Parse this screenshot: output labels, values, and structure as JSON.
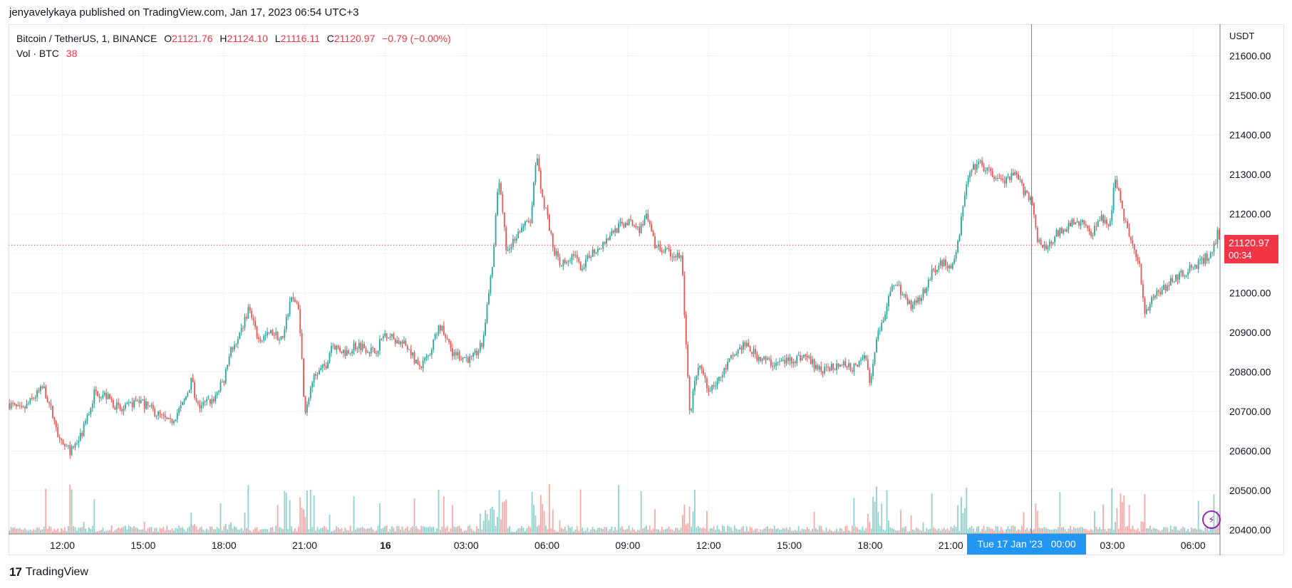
{
  "header": {
    "publish_text": "jenyavelykaya published on TradingView.com, Jan 17, 2023 06:54 UTC+3"
  },
  "legend": {
    "symbol": "Bitcoin / TetherUS, 1, BINANCE",
    "open_label": "O",
    "open": "21121.76",
    "high_label": "H",
    "high": "21124.10",
    "low_label": "L",
    "low": "21116.11",
    "close_label": "C",
    "close": "21120.97",
    "change": "−0.79 (−0.00%)",
    "volume_label": "Vol · BTC",
    "volume": "38"
  },
  "footer": {
    "brand": "TradingView",
    "logo_glyph": "17"
  },
  "price_tag": {
    "price": "21120.97",
    "countdown": "00:34"
  },
  "crosshair_label": "Tue 17 Jan '23   00:00",
  "colors": {
    "up": "#26a69a",
    "down": "#ef5350",
    "accent": "#2196f3",
    "price_line": "#f23645",
    "grid": "#f0f3fa"
  },
  "chart_data": {
    "type": "candlestick",
    "symbol": "Bitcoin / TetherUS",
    "interval": "1",
    "exchange": "BINANCE",
    "y_axis_unit": "USDT",
    "ylim": [
      20390,
      21680
    ],
    "y_ticks": [
      20400,
      20500,
      20600,
      20700,
      20800,
      20900,
      21000,
      21100,
      21200,
      21300,
      21400,
      21500,
      21600
    ],
    "y_tick_labels": [
      "20400.00",
      "20500.00",
      "20600.00",
      "20700.00",
      "20800.00",
      "20900.00",
      "21000.00",
      "21100.00",
      "21200.00",
      "21300.00",
      "21400.00",
      "21500.00",
      "21600.00"
    ],
    "x_ticks": [
      {
        "label": "12:00",
        "h": 12
      },
      {
        "label": "15:00",
        "h": 15
      },
      {
        "label": "18:00",
        "h": 18
      },
      {
        "label": "21:00",
        "h": 21
      },
      {
        "label": "16",
        "h": 24,
        "bold": true
      },
      {
        "label": "03:00",
        "h": 27
      },
      {
        "label": "06:00",
        "h": 30
      },
      {
        "label": "09:00",
        "h": 33
      },
      {
        "label": "12:00",
        "h": 36
      },
      {
        "label": "15:00",
        "h": 39
      },
      {
        "label": "18:00",
        "h": 42
      },
      {
        "label": "21:00",
        "h": 45
      },
      {
        "label": "03:00",
        "h": 51
      },
      {
        "label": "06:00",
        "h": 54
      }
    ],
    "x_range_hours": [
      10.0,
      55.0
    ],
    "crosshair_hour": 48,
    "last_price": 21120.97,
    "price_path": [
      [
        10.0,
        20720
      ],
      [
        10.5,
        20700
      ],
      [
        11.0,
        20740
      ],
      [
        11.3,
        20760
      ],
      [
        11.6,
        20700
      ],
      [
        11.9,
        20620
      ],
      [
        12.3,
        20600
      ],
      [
        12.7,
        20640
      ],
      [
        13.0,
        20700
      ],
      [
        13.2,
        20750
      ],
      [
        13.6,
        20740
      ],
      [
        14.2,
        20700
      ],
      [
        14.8,
        20730
      ],
      [
        15.4,
        20700
      ],
      [
        16.0,
        20670
      ],
      [
        16.5,
        20720
      ],
      [
        16.8,
        20780
      ],
      [
        17.0,
        20710
      ],
      [
        17.6,
        20730
      ],
      [
        18.0,
        20780
      ],
      [
        18.2,
        20850
      ],
      [
        18.5,
        20870
      ],
      [
        18.9,
        20960
      ],
      [
        19.3,
        20880
      ],
      [
        19.8,
        20900
      ],
      [
        20.2,
        20880
      ],
      [
        20.5,
        21000
      ],
      [
        20.8,
        20950
      ],
      [
        21.0,
        20700
      ],
      [
        21.3,
        20780
      ],
      [
        21.8,
        20820
      ],
      [
        22.0,
        20870
      ],
      [
        22.5,
        20850
      ],
      [
        23.0,
        20870
      ],
      [
        23.6,
        20850
      ],
      [
        24.0,
        20900
      ],
      [
        24.4,
        20880
      ],
      [
        24.9,
        20860
      ],
      [
        25.2,
        20810
      ],
      [
        25.6,
        20840
      ],
      [
        26.0,
        20920
      ],
      [
        26.5,
        20850
      ],
      [
        26.8,
        20840
      ],
      [
        27.2,
        20830
      ],
      [
        27.6,
        20870
      ],
      [
        27.8,
        20980
      ],
      [
        28.0,
        21080
      ],
      [
        28.2,
        21300
      ],
      [
        28.5,
        21100
      ],
      [
        28.8,
        21140
      ],
      [
        29.1,
        21170
      ],
      [
        29.4,
        21180
      ],
      [
        29.6,
        21350
      ],
      [
        29.8,
        21250
      ],
      [
        30.0,
        21200
      ],
      [
        30.2,
        21120
      ],
      [
        30.5,
        21070
      ],
      [
        31.0,
        21100
      ],
      [
        31.3,
        21050
      ],
      [
        31.6,
        21100
      ],
      [
        32.0,
        21120
      ],
      [
        32.5,
        21160
      ],
      [
        33.0,
        21180
      ],
      [
        33.4,
        21160
      ],
      [
        33.7,
        21190
      ],
      [
        34.0,
        21120
      ],
      [
        34.5,
        21100
      ],
      [
        35.0,
        21090
      ],
      [
        35.3,
        20690
      ],
      [
        35.6,
        20820
      ],
      [
        36.0,
        20760
      ],
      [
        36.4,
        20780
      ],
      [
        36.8,
        20830
      ],
      [
        37.3,
        20870
      ],
      [
        37.8,
        20840
      ],
      [
        38.4,
        20820
      ],
      [
        39.0,
        20830
      ],
      [
        39.6,
        20840
      ],
      [
        40.2,
        20800
      ],
      [
        40.8,
        20820
      ],
      [
        41.4,
        20810
      ],
      [
        41.8,
        20850
      ],
      [
        42.0,
        20760
      ],
      [
        42.3,
        20900
      ],
      [
        42.6,
        20960
      ],
      [
        42.9,
        21030
      ],
      [
        43.2,
        21000
      ],
      [
        43.5,
        20970
      ],
      [
        44.0,
        21000
      ],
      [
        44.3,
        21050
      ],
      [
        44.6,
        21080
      ],
      [
        45.0,
        21070
      ],
      [
        45.3,
        21130
      ],
      [
        45.5,
        21250
      ],
      [
        45.7,
        21300
      ],
      [
        46.0,
        21330
      ],
      [
        46.5,
        21300
      ],
      [
        47.0,
        21280
      ],
      [
        47.4,
        21300
      ],
      [
        47.7,
        21260
      ],
      [
        48.0,
        21240
      ],
      [
        48.2,
        21130
      ],
      [
        48.5,
        21110
      ],
      [
        48.8,
        21140
      ],
      [
        49.3,
        21170
      ],
      [
        49.8,
        21180
      ],
      [
        50.2,
        21150
      ],
      [
        50.6,
        21190
      ],
      [
        50.9,
        21160
      ],
      [
        51.1,
        21290
      ],
      [
        51.4,
        21200
      ],
      [
        51.7,
        21130
      ],
      [
        52.0,
        21080
      ],
      [
        52.2,
        20950
      ],
      [
        52.5,
        20990
      ],
      [
        52.9,
        21010
      ],
      [
        53.3,
        21040
      ],
      [
        53.7,
        21050
      ],
      [
        54.1,
        21070
      ],
      [
        54.5,
        21090
      ],
      [
        54.8,
        21120
      ],
      [
        54.9,
        21150
      ],
      [
        55.0,
        21120
      ]
    ]
  }
}
